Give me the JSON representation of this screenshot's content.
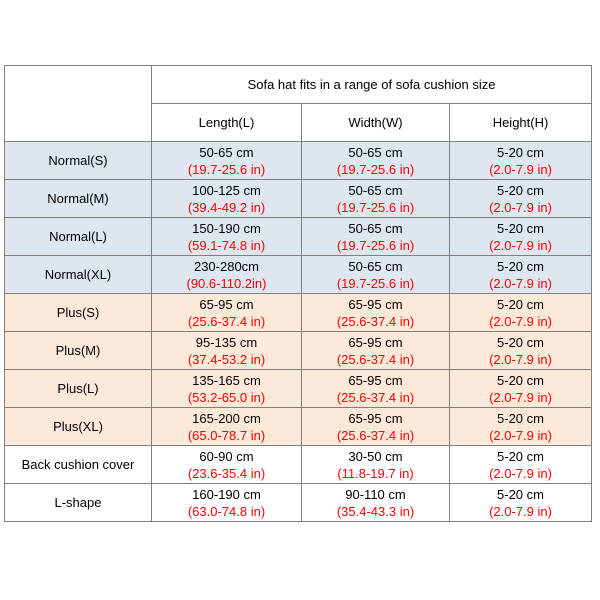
{
  "table": {
    "title": "Sofa hat fits in a range of sofa cushion size",
    "columns": [
      "Length(L)",
      "Width(W)",
      "Height(H)"
    ],
    "colors": {
      "normal_row_bg": "#dee6ef",
      "plus_row_bg": "#fde9d9",
      "inch_text": "#ff0000",
      "border": "#808080"
    },
    "rows": [
      {
        "label": "Normal(S)",
        "length_cm": "50-65 cm",
        "length_in": "(19.7-25.6 in)",
        "width_cm": "50-65 cm",
        "width_in": "(19.7-25.6 in)",
        "height_cm": "5-20 cm",
        "height_in": "(2.0-7.9 in)"
      },
      {
        "label": "Normal(M)",
        "length_cm": "100-125 cm",
        "length_in": "(39.4-49.2 in)",
        "width_cm": "50-65 cm",
        "width_in": "(19.7-25.6 in)",
        "height_cm": "5-20 cm",
        "height_in": "(2.0-7.9 in)"
      },
      {
        "label": "Normal(L)",
        "length_cm": "150-190 cm",
        "length_in": "(59.1-74.8 in)",
        "width_cm": "50-65 cm",
        "width_in": "(19.7-25.6 in)",
        "height_cm": "5-20 cm",
        "height_in": "(2.0-7.9 in)"
      },
      {
        "label": "Normal(XL)",
        "length_cm": "230-280cm",
        "length_in": "(90.6-110.2in)",
        "width_cm": "50-65 cm",
        "width_in": "(19.7-25.6 in)",
        "height_cm": "5-20 cm",
        "height_in": "(2.0-7.9 in)"
      },
      {
        "label": "Plus(S)",
        "length_cm": "65-95 cm",
        "length_in": "(25.6-37.4 in)",
        "width_cm": "65-95 cm",
        "width_in": "(25.6-37.4 in)",
        "height_cm": "5-20 cm",
        "height_in": "(2.0-7.9 in)"
      },
      {
        "label": "Plus(M)",
        "length_cm": "95-135 cm",
        "length_in": "(37.4-53.2 in)",
        "width_cm": "65-95 cm",
        "width_in": "(25.6-37.4 in)",
        "height_cm": "5-20 cm",
        "height_in": "(2.0-7.9 in)"
      },
      {
        "label": "Plus(L)",
        "length_cm": "135-165 cm",
        "length_in": "(53.2-65.0 in)",
        "width_cm": "65-95 cm",
        "width_in": "(25.6-37.4 in)",
        "height_cm": "5-20 cm",
        "height_in": "(2.0-7.9 in)"
      },
      {
        "label": "Plus(XL)",
        "length_cm": "165-200 cm",
        "length_in": "(65.0-78.7 in)",
        "width_cm": "65-95 cm",
        "width_in": "(25.6-37.4 in)",
        "height_cm": "5-20 cm",
        "height_in": "(2.0-7.9 in)"
      },
      {
        "label": "Back cushion cover",
        "length_cm": "60-90 cm",
        "length_in": "(23.6-35.4 in)",
        "width_cm": "30-50 cm",
        "width_in": "(11.8-19.7 in)",
        "height_cm": "5-20 cm",
        "height_in": "(2.0-7.9 in)"
      },
      {
        "label": "L-shape",
        "length_cm": "160-190 cm",
        "length_in": "(63.0-74.8 in)",
        "width_cm": "90-110 cm",
        "width_in": "(35.4-43.3 in)",
        "height_cm": "5-20 cm",
        "height_in": "(2.0-7.9 in)"
      }
    ]
  }
}
